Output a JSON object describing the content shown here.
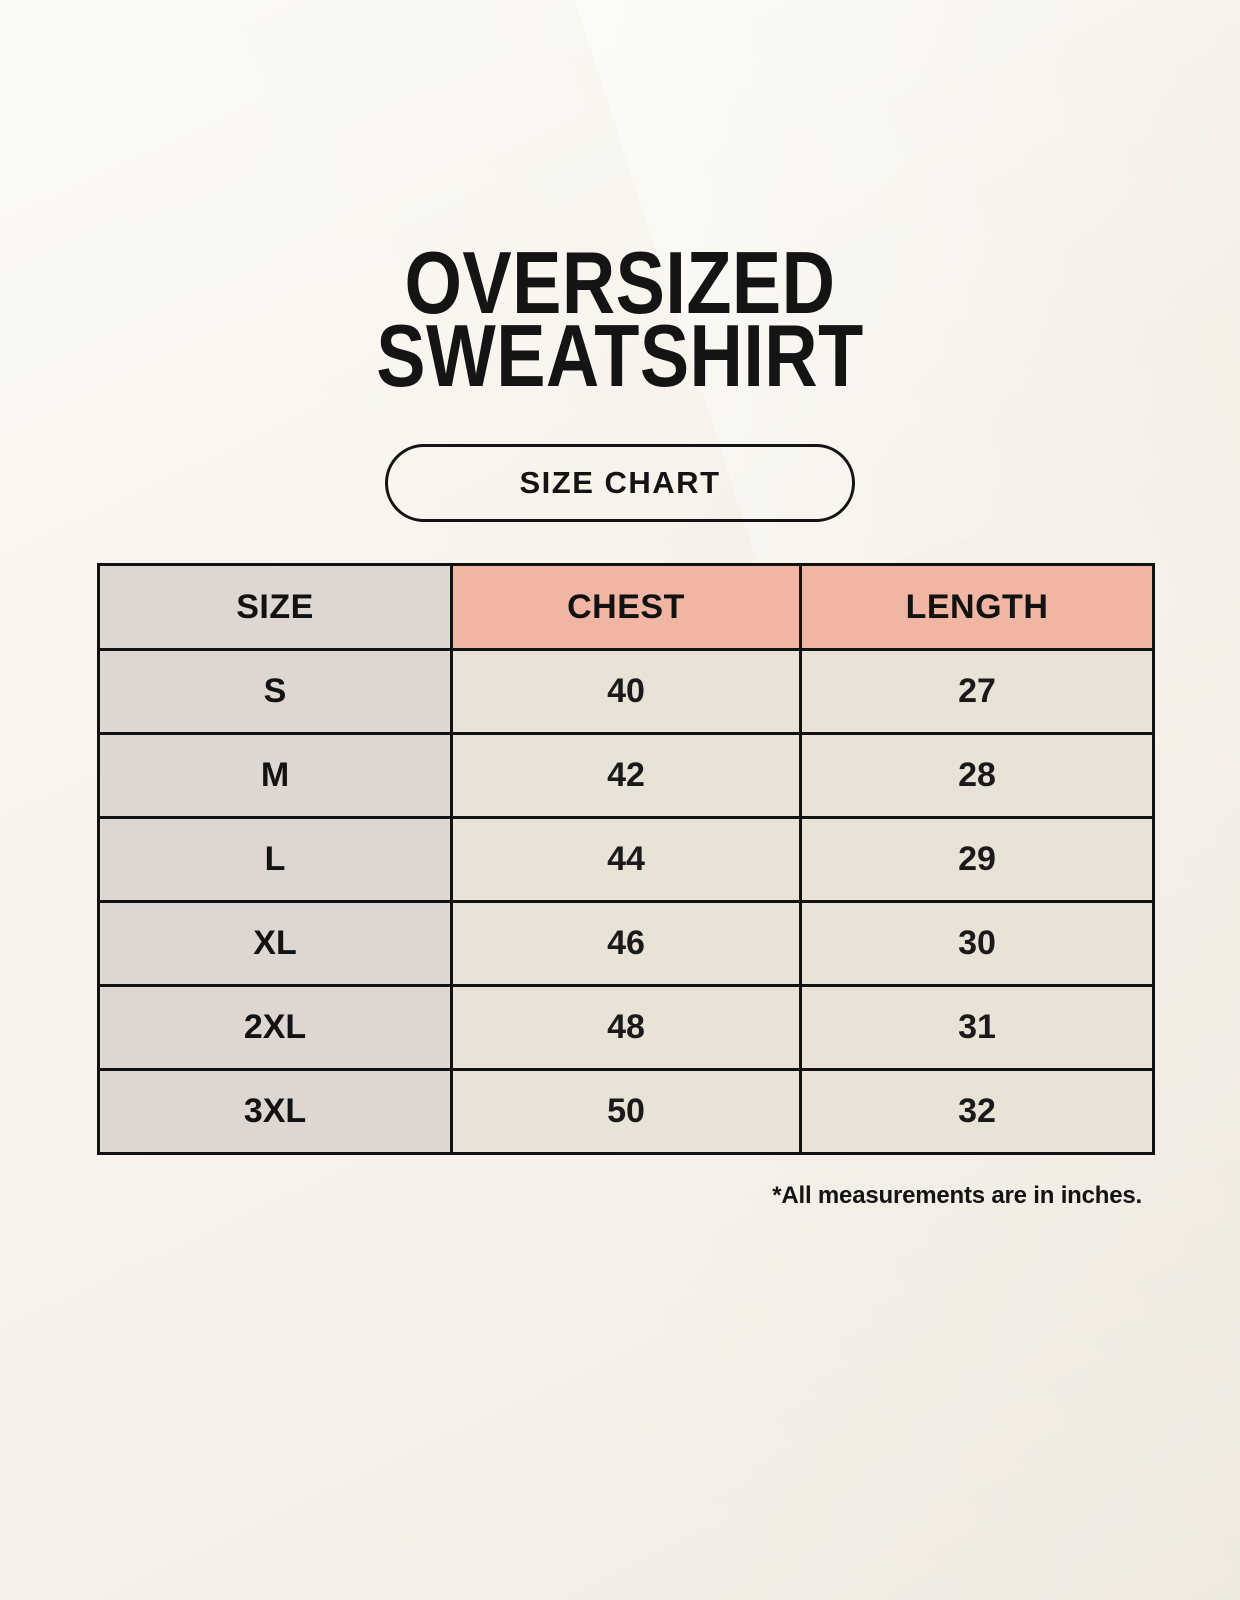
{
  "page": {
    "title": [
      "OVERSIZED",
      "SWEATSHIRT"
    ],
    "size_chart_button": "SIZE CHART",
    "footnote": "*All measurements are in inches."
  },
  "colors": {
    "background": "#f8f4ec",
    "size_column_bg": "#ddd6d1",
    "header_accent_bg": "#f0b5a3",
    "cell_bg": "#e9e2d7",
    "border": "#121212",
    "text": "#141414"
  },
  "chart_data": {
    "type": "table",
    "title": "OVERSIZED SWEATSHIRT",
    "subtitle": "SIZE CHART",
    "columns": [
      "SIZE",
      "CHEST",
      "LENGTH"
    ],
    "rows": [
      [
        "S",
        "40",
        "27"
      ],
      [
        "M",
        "42",
        "28"
      ],
      [
        "L",
        "44",
        "29"
      ],
      [
        "XL",
        "46",
        "30"
      ],
      [
        "2XL",
        "48",
        "31"
      ],
      [
        "3XL",
        "50",
        "32"
      ]
    ],
    "units_note": "*All measurements are in inches.",
    "layout": {
      "legend": "none",
      "grid": "full black borders",
      "size_column_highlight": "#ddd6d1",
      "measurement_header_highlight": "#f0b5a3"
    }
  }
}
